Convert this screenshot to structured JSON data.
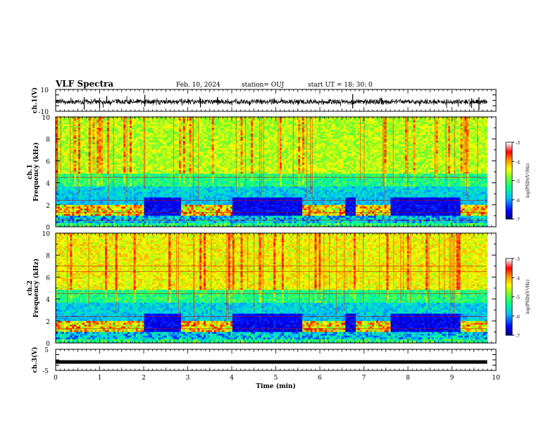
{
  "header": {
    "title": "VLF Spectra",
    "date": "Feb. 10, 2024",
    "station": "station= OUJ",
    "start": "start  UT  =   18: 30: 0"
  },
  "chart_data": {
    "type": "heatmap",
    "x": {
      "label": "Time  (min)",
      "range": [
        0,
        10
      ],
      "ticks": [
        "0",
        "1",
        "2",
        "3",
        "4",
        "5",
        "6",
        "7",
        "8",
        "9",
        "10"
      ]
    },
    "panels": [
      {
        "id": "ch1-waveform",
        "type": "line",
        "ylabel": "ch.1(V)",
        "ylim": [
          -10,
          10
        ],
        "yticks": [
          "10",
          "-10"
        ]
      },
      {
        "id": "ch1-spectrogram",
        "type": "heatmap",
        "ylabel_top": "ch.1",
        "ylabel": "Frequency  (kHz)",
        "ylim": [
          0,
          10
        ],
        "yticks": [
          "0",
          "2",
          "4",
          "6",
          "8",
          "10"
        ],
        "colorbar": {
          "label": "log(PSD)(V²/Hz)",
          "range": [
            -7,
            -3
          ],
          "ticks": [
            "-3",
            "-4",
            "-5",
            "-6",
            "-7"
          ]
        }
      },
      {
        "id": "ch2-spectrogram",
        "type": "heatmap",
        "ylabel_top": "ch.2",
        "ylabel": "Frequency  (kHz)",
        "ylim": [
          0,
          10
        ],
        "yticks": [
          "0",
          "2",
          "4",
          "6",
          "8",
          "10"
        ],
        "colorbar": {
          "label": "log(PSD)(V²/Hz)",
          "range": [
            -7,
            -3
          ],
          "ticks": [
            "-3",
            "-4",
            "-5",
            "-6",
            "-7"
          ]
        }
      },
      {
        "id": "ch3-waveform",
        "type": "line",
        "ylabel": "ch.3(V)",
        "ylim": [
          -5,
          5
        ],
        "yticks": [
          "5",
          "-5"
        ],
        "value": -1
      }
    ],
    "data_end_min": 9.8,
    "colorscale": [
      "#000080",
      "#0000ff",
      "#00c0ff",
      "#00ff80",
      "#a0ff20",
      "#ffff00",
      "#ff8000",
      "#ff0000",
      "#ffffff"
    ]
  }
}
